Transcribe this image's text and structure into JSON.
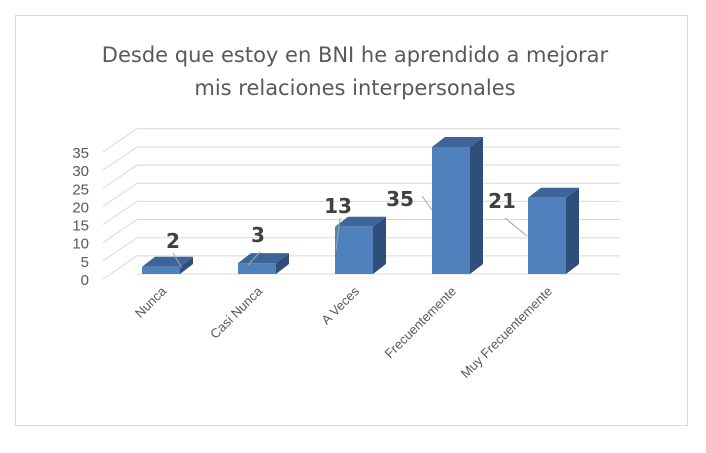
{
  "chart_data": {
    "type": "bar",
    "style": "3d-column",
    "title_lines": [
      "Desde que estoy en BNI he aprendido a mejorar",
      "mis relaciones interpersonales"
    ],
    "categories": [
      "Nunca",
      "Casi Nunca",
      "A Veces",
      "Frecuentemente",
      "Muy Frecuentemente"
    ],
    "values": [
      2,
      3,
      13,
      35,
      21
    ],
    "data_labels": [
      "2",
      "3",
      "13",
      "35",
      "21"
    ],
    "y_ticks": [
      "0",
      "5",
      "10",
      "15",
      "20",
      "25",
      "30",
      "35"
    ],
    "ylim": [
      0,
      40
    ],
    "grid": true,
    "legend": "none",
    "xlabel": "",
    "ylabel": "",
    "colors": {
      "front": "#4f81bd",
      "top": "#3e6597",
      "side": "#2f4f7a",
      "grid": "#d9d9d9",
      "text": "#595959"
    }
  }
}
